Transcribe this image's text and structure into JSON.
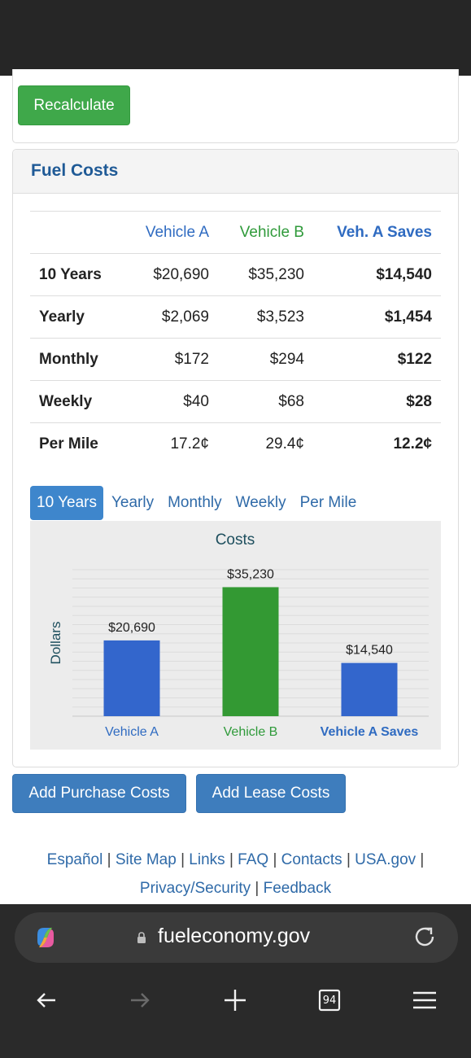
{
  "recalc": {
    "label": "Recalculate"
  },
  "fuel_costs": {
    "title": "Fuel Costs",
    "columns": [
      "",
      "Vehicle A",
      "Vehicle B",
      "Veh. A Saves"
    ],
    "rows": [
      {
        "label": "10 Years",
        "a": "$20,690",
        "b": "$35,230",
        "saves": "$14,540"
      },
      {
        "label": "Yearly",
        "a": "$2,069",
        "b": "$3,523",
        "saves": "$1,454"
      },
      {
        "label": "Monthly",
        "a": "$172",
        "b": "$294",
        "saves": "$122"
      },
      {
        "label": "Weekly",
        "a": "$40",
        "b": "$68",
        "saves": "$28"
      },
      {
        "label": "Per Mile",
        "a": "17.2¢",
        "b": "29.4¢",
        "saves": "12.2¢"
      }
    ]
  },
  "tabs": [
    {
      "label": "10 Years",
      "active": true
    },
    {
      "label": "Yearly",
      "active": false
    },
    {
      "label": "Monthly",
      "active": false
    },
    {
      "label": "Weekly",
      "active": false
    },
    {
      "label": "Per Mile",
      "active": false
    }
  ],
  "chart_data": {
    "type": "bar",
    "title": "Costs",
    "xlabel": "",
    "ylabel": "Dollars",
    "ylim": [
      0,
      40000
    ],
    "grid": true,
    "categories": [
      "Vehicle A",
      "Vehicle B",
      "Vehicle A Saves"
    ],
    "values": [
      20690,
      35230,
      14540
    ],
    "data_labels": [
      "$20,690",
      "$35,230",
      "$14,540"
    ],
    "colors": [
      "#3366cc",
      "#339933",
      "#3366cc"
    ],
    "label_colors": [
      "#2f6bc1",
      "#2f9a3a",
      "#2f6bc1"
    ]
  },
  "buttons": {
    "purchase": "Add Purchase Costs",
    "lease": "Add Lease Costs"
  },
  "footer": {
    "line1": [
      "Español",
      "Site Map",
      "Links",
      "FAQ",
      "Contacts",
      "USA.gov"
    ],
    "line2": [
      "Privacy/Security",
      "Feedback"
    ],
    "separator": "|"
  },
  "browser": {
    "url": "fueleconomy.gov",
    "tab_count": "94"
  },
  "colors": {
    "green": "#3fa84a",
    "blue_button": "#3e7dbd",
    "heading_blue": "#1f5a96",
    "link_blue": "#2f6aa8"
  }
}
